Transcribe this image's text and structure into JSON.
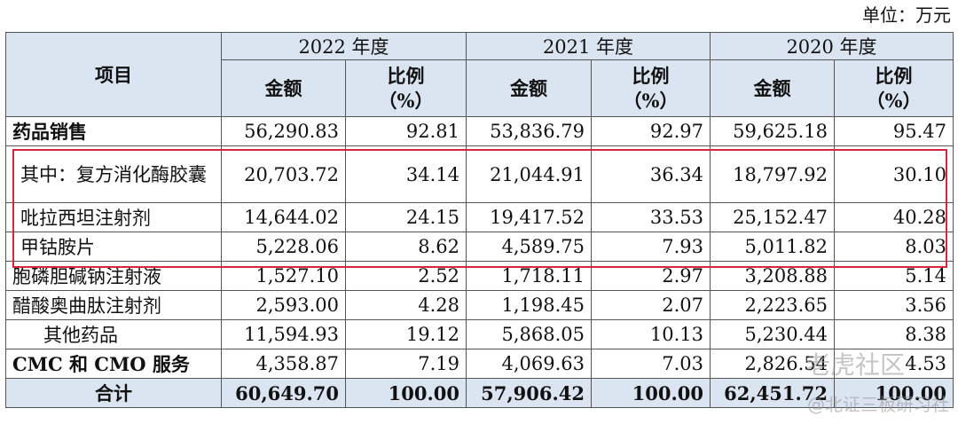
{
  "unit_label": "单位：万元",
  "header": {
    "item_label": "项目",
    "years": [
      "2022 年度",
      "2021 年度",
      "2020 年度"
    ],
    "amount_label": "金额",
    "ratio_label_line1": "比例",
    "ratio_label_line2": "（%）"
  },
  "rows": [
    {
      "label": "药品销售",
      "v": [
        "56,290.83",
        "92.81",
        "53,836.79",
        "92.97",
        "59,625.18",
        "95.47"
      ]
    },
    {
      "label": "其中：复方消化酶胶囊",
      "v": [
        "20,703.72",
        "34.14",
        "21,044.91",
        "36.34",
        "18,797.92",
        "30.10"
      ]
    },
    {
      "label": "吡拉西坦注射剂",
      "v": [
        "14,644.02",
        "24.15",
        "19,417.52",
        "33.53",
        "25,152.47",
        "40.28"
      ]
    },
    {
      "label": "甲钴胺片",
      "v": [
        "5,228.06",
        "8.62",
        "4,589.75",
        "7.93",
        "5,011.82",
        "8.03"
      ]
    },
    {
      "label": "胞磷胆碱钠注射液",
      "v": [
        "1,527.10",
        "2.52",
        "1,718.11",
        "2.97",
        "3,208.88",
        "5.14"
      ]
    },
    {
      "label": "醋酸奥曲肽注射剂",
      "v": [
        "2,593.00",
        "4.28",
        "1,198.45",
        "2.07",
        "2,223.65",
        "3.56"
      ]
    },
    {
      "label": "其他药品",
      "v": [
        "11,594.93",
        "19.12",
        "5,868.05",
        "10.13",
        "5,230.44",
        "8.38"
      ]
    },
    {
      "label": "CMC 和 CMO 服务",
      "v": [
        "4,358.87",
        "7.19",
        "4,069.63",
        "7.03",
        "2,826.54",
        "4.53"
      ]
    },
    {
      "label": "合计",
      "v": [
        "60,649.70",
        "100.00",
        "57,906.42",
        "100.00",
        "62,451.72",
        "100.00"
      ]
    }
  ],
  "watermark": {
    "line1": "老虎社区",
    "line2": "@北证三板研习社"
  }
}
